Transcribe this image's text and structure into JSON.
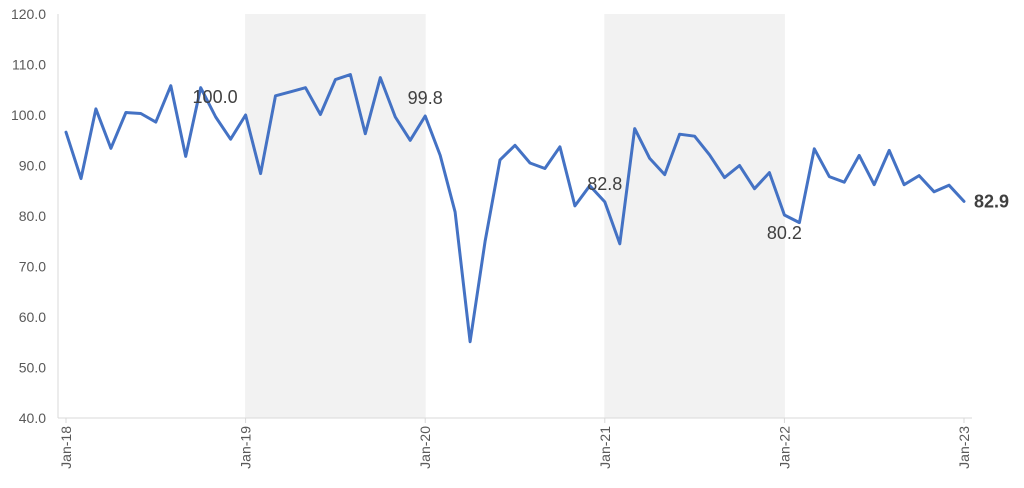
{
  "chart_data": {
    "type": "line",
    "title": "",
    "xlabel": "",
    "ylabel": "",
    "ylim": [
      40,
      120
    ],
    "yticks": [
      "40.0",
      "50.0",
      "60.0",
      "70.0",
      "80.0",
      "90.0",
      "100.0",
      "110.0",
      "120.0"
    ],
    "xticks": [
      "Jan-18",
      "Jan-19",
      "Jan-20",
      "Jan-21",
      "Jan-22",
      "Jan-23"
    ],
    "grid": false,
    "line_color": "#4472C4",
    "shade_color": "#F2F2F2",
    "shaded_ranges": [
      [
        "Jan-19",
        "Jan-20"
      ],
      [
        "Jan-21",
        "Jan-22"
      ]
    ],
    "x": [
      "Jan-18",
      "Feb-18",
      "Mar-18",
      "Apr-18",
      "May-18",
      "Jun-18",
      "Jul-18",
      "Aug-18",
      "Sep-18",
      "Oct-18",
      "Nov-18",
      "Dec-18",
      "Jan-19",
      "Feb-19",
      "Mar-19",
      "Apr-19",
      "May-19",
      "Jun-19",
      "Jul-19",
      "Aug-19",
      "Sep-19",
      "Oct-19",
      "Nov-19",
      "Dec-19",
      "Jan-20",
      "Feb-20",
      "Mar-20",
      "Apr-20",
      "May-20",
      "Jun-20",
      "Jul-20",
      "Aug-20",
      "Sep-20",
      "Oct-20",
      "Nov-20",
      "Dec-20",
      "Jan-21",
      "Feb-21",
      "Mar-21",
      "Apr-21",
      "May-21",
      "Jun-21",
      "Jul-21",
      "Aug-21",
      "Sep-21",
      "Oct-21",
      "Nov-21",
      "Dec-21",
      "Jan-22",
      "Feb-22",
      "Mar-22",
      "Apr-22",
      "May-22",
      "Jun-22",
      "Jul-22",
      "Aug-22",
      "Sep-22",
      "Oct-22",
      "Nov-22",
      "Dec-22",
      "Jan-23"
    ],
    "values": [
      96.6,
      87.4,
      101.2,
      93.4,
      100.5,
      100.3,
      98.6,
      105.8,
      91.8,
      105.4,
      99.6,
      95.2,
      100.0,
      88.4,
      103.8,
      104.6,
      105.4,
      100.1,
      107.0,
      108.0,
      96.3,
      107.4,
      99.6,
      95.0,
      99.8,
      92.0,
      80.8,
      55.1,
      75.0,
      91.1,
      94.0,
      90.5,
      89.4,
      93.7,
      82.0,
      86.0,
      82.8,
      74.5,
      97.3,
      91.4,
      88.2,
      96.2,
      95.8,
      92.1,
      87.6,
      90.0,
      85.4,
      88.6,
      80.2,
      78.7,
      93.3,
      87.8,
      86.7,
      92.0,
      86.2,
      93.0,
      86.2,
      88.0,
      84.8,
      86.1,
      82.9
    ],
    "annotations": [
      {
        "index": 12,
        "text": "100.0",
        "pos": "above-left",
        "bold": false
      },
      {
        "index": 24,
        "text": "99.8",
        "pos": "above",
        "bold": false
      },
      {
        "index": 36,
        "text": "82.8",
        "pos": "above",
        "bold": false
      },
      {
        "index": 48,
        "text": "80.2",
        "pos": "below",
        "bold": false
      },
      {
        "index": 60,
        "text": "82.9",
        "pos": "right",
        "bold": true
      }
    ]
  }
}
